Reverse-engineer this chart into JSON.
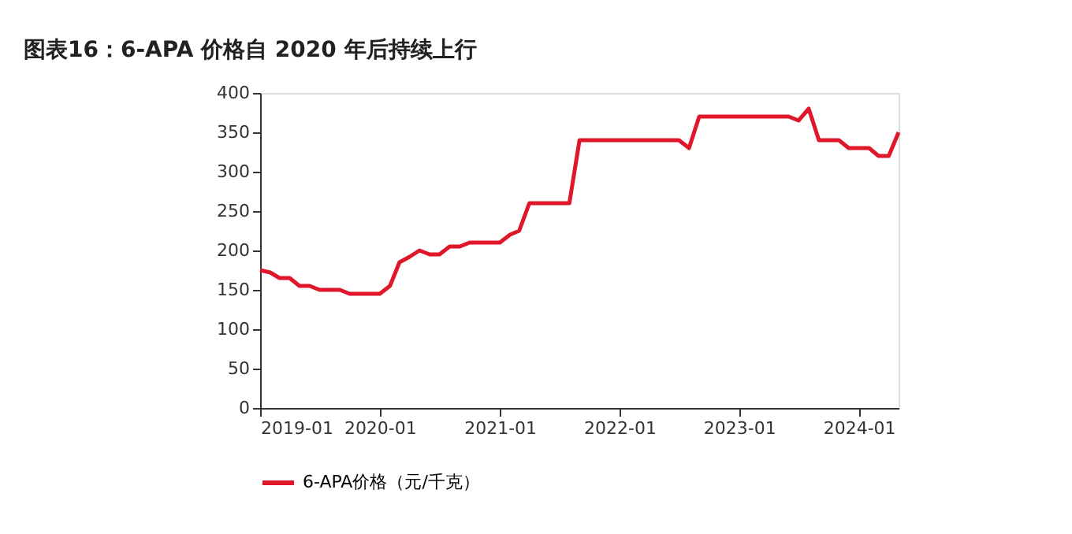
{
  "chart_data": {
    "type": "line",
    "title": "图表16：6-APA 价格自 2020 年后持续上行",
    "x": [
      "2019-01",
      "2019-02",
      "2019-03",
      "2019-04",
      "2019-05",
      "2019-06",
      "2019-07",
      "2019-08",
      "2019-09",
      "2019-10",
      "2019-11",
      "2019-12",
      "2020-01",
      "2020-02",
      "2020-03",
      "2020-04",
      "2020-05",
      "2020-06",
      "2020-07",
      "2020-08",
      "2020-09",
      "2020-10",
      "2020-11",
      "2020-12",
      "2021-01",
      "2021-02",
      "2021-03",
      "2021-04",
      "2021-05",
      "2021-06",
      "2021-07",
      "2021-08",
      "2021-09",
      "2021-10",
      "2021-11",
      "2021-12",
      "2022-01",
      "2022-02",
      "2022-03",
      "2022-04",
      "2022-05",
      "2022-06",
      "2022-07",
      "2022-08",
      "2022-09",
      "2022-10",
      "2022-11",
      "2022-12",
      "2023-01",
      "2023-02",
      "2023-03",
      "2023-04",
      "2023-05",
      "2023-06",
      "2023-07",
      "2023-08",
      "2023-09",
      "2023-10",
      "2023-11",
      "2023-12",
      "2024-01",
      "2024-02",
      "2024-03",
      "2024-04",
      "2024-05"
    ],
    "series": [
      {
        "name": "6-APA价格（元/千克）",
        "color": "#e0162b",
        "values": [
          175,
          172,
          165,
          165,
          155,
          155,
          150,
          150,
          150,
          145,
          145,
          145,
          145,
          155,
          185,
          192,
          200,
          195,
          195,
          205,
          205,
          210,
          210,
          210,
          210,
          220,
          225,
          260,
          260,
          260,
          260,
          260,
          340,
          340,
          340,
          340,
          340,
          340,
          340,
          340,
          340,
          340,
          340,
          330,
          370,
          370,
          370,
          370,
          370,
          370,
          370,
          370,
          370,
          370,
          365,
          380,
          340,
          340,
          340,
          330,
          330,
          330,
          320,
          320,
          350
        ]
      }
    ],
    "xlim": [
      "2019-01",
      "2024-05"
    ],
    "xticks": [
      "2019-01",
      "2020-01",
      "2021-01",
      "2022-01",
      "2023-01",
      "2024-01"
    ],
    "ylim": [
      0,
      400
    ],
    "yticks": [
      0,
      50,
      100,
      150,
      200,
      250,
      300,
      350,
      400
    ],
    "grid": false,
    "legend": "bottom",
    "line_style": "solid",
    "marker": "none"
  }
}
